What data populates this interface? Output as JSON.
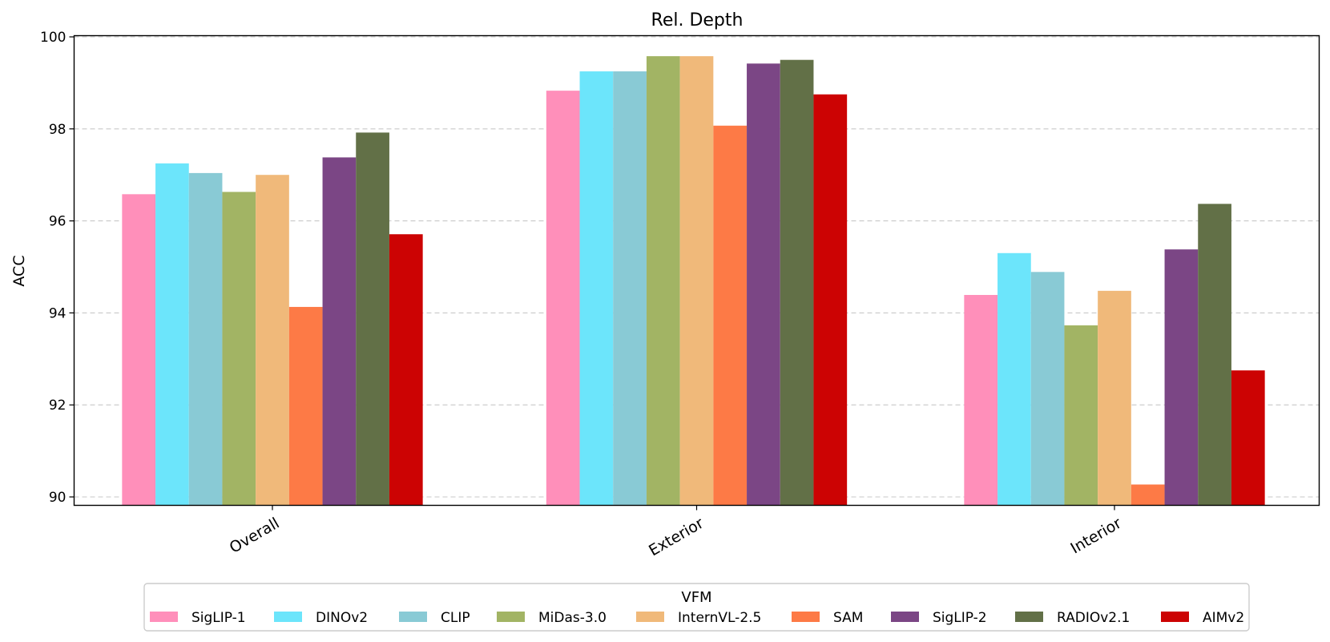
{
  "chart_data": {
    "type": "bar",
    "title": "Rel. Depth",
    "xlabel": "",
    "ylabel": "ACC",
    "ylim": [
      89.8,
      100.05
    ],
    "yticks": [
      90,
      92,
      94,
      96,
      98,
      100
    ],
    "grid": "y-dashed",
    "categories": [
      "Overall",
      "Exterior",
      "Interior"
    ],
    "legend": {
      "title": "VFM",
      "placement": "bottom-center"
    },
    "series": [
      {
        "name": "SigLIP-1",
        "color": "#ff8fba",
        "values": [
          96.58,
          98.83,
          94.39
        ]
      },
      {
        "name": "DINOv2",
        "color": "#6ce5fb",
        "values": [
          97.25,
          99.25,
          95.3
        ]
      },
      {
        "name": "CLIP",
        "color": "#89cad5",
        "values": [
          97.04,
          99.25,
          94.89
        ]
      },
      {
        "name": "MiDas-3.0",
        "color": "#a2b464",
        "values": [
          96.63,
          99.58,
          93.73
        ]
      },
      {
        "name": "InternVL-2.5",
        "color": "#f0b97a",
        "values": [
          97.0,
          99.58,
          94.48
        ]
      },
      {
        "name": "SAM",
        "color": "#fd7a46",
        "values": [
          94.13,
          98.07,
          90.27
        ]
      },
      {
        "name": "SigLIP-2",
        "color": "#7b4685",
        "values": [
          97.38,
          99.42,
          95.38
        ]
      },
      {
        "name": "RADIOv2.1",
        "color": "#627047",
        "values": [
          97.92,
          99.5,
          96.37
        ]
      },
      {
        "name": "AIMv2",
        "color": "#cc0303",
        "values": [
          95.71,
          98.75,
          92.75
        ]
      }
    ]
  }
}
